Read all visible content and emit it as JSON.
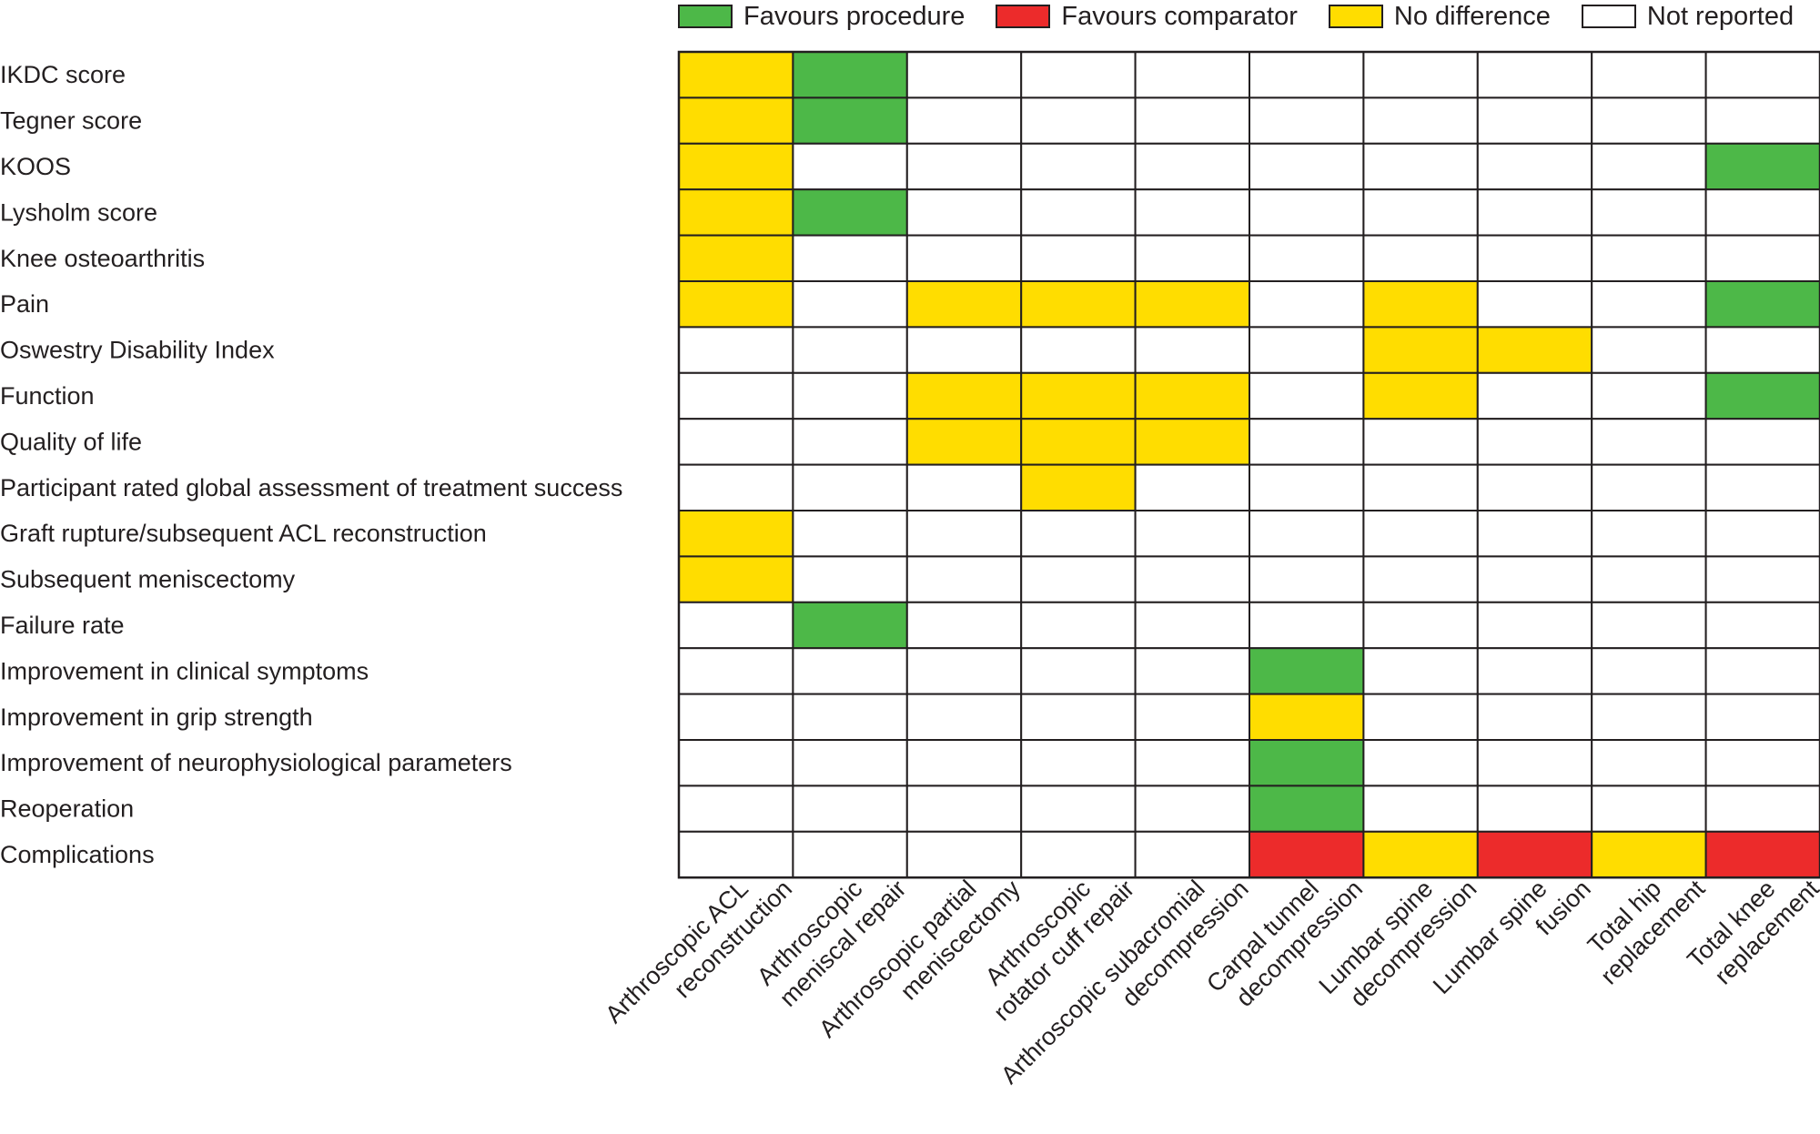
{
  "chart_data": {
    "type": "heatmap",
    "colors": {
      "favours_procedure": "#4db848",
      "favours_comparator": "#ec2b2b",
      "no_difference": "#ffdd00",
      "not_reported": "#ffffff",
      "border": "#231f20"
    },
    "legend": [
      {
        "key": "favours_procedure",
        "label": "Favours procedure"
      },
      {
        "key": "favours_comparator",
        "label": "Favours comparator"
      },
      {
        "key": "no_difference",
        "label": "No difference"
      },
      {
        "key": "not_reported",
        "label": "Not reported"
      }
    ],
    "legend_position": "top",
    "columns": [
      [
        "Arthroscopic ACL",
        "reconstruction"
      ],
      [
        "Arthroscopic",
        "meniscal repair"
      ],
      [
        "Arthroscopic partial",
        "meniscectomy"
      ],
      [
        "Arthroscopic",
        "rotator cuff repair"
      ],
      [
        "Arthroscopic subacromial",
        "decompression"
      ],
      [
        "Carpal tunnel",
        "decompression"
      ],
      [
        "Lumbar spine",
        "decompression"
      ],
      [
        "Lumbar spine",
        "fusion"
      ],
      [
        "Total hip",
        "replacement"
      ],
      [
        "Total knee",
        "replacement"
      ]
    ],
    "rows": [
      "IKDC score",
      "Tegner score",
      "KOOS",
      "Lysholm score",
      "Knee osteoarthritis",
      "Pain",
      "Oswestry Disability Index",
      "Function",
      "Quality of life",
      "Participant rated global assessment of treatment success",
      "Graft rupture/subsequent ACL reconstruction",
      "Subsequent meniscectomy",
      "Failure rate",
      "Improvement in clinical symptoms",
      "Improvement in grip strength",
      "Improvement of neurophysiological parameters",
      "Reoperation",
      "Complications"
    ],
    "cells": [
      [
        "Y",
        "G",
        "N",
        "N",
        "N",
        "N",
        "N",
        "N",
        "N",
        "N"
      ],
      [
        "Y",
        "G",
        "N",
        "N",
        "N",
        "N",
        "N",
        "N",
        "N",
        "N"
      ],
      [
        "Y",
        "N",
        "N",
        "N",
        "N",
        "N",
        "N",
        "N",
        "N",
        "G"
      ],
      [
        "Y",
        "G",
        "N",
        "N",
        "N",
        "N",
        "N",
        "N",
        "N",
        "N"
      ],
      [
        "Y",
        "N",
        "N",
        "N",
        "N",
        "N",
        "N",
        "N",
        "N",
        "N"
      ],
      [
        "Y",
        "N",
        "Y",
        "Y",
        "Y",
        "N",
        "Y",
        "N",
        "N",
        "G"
      ],
      [
        "N",
        "N",
        "N",
        "N",
        "N",
        "N",
        "Y",
        "Y",
        "N",
        "N"
      ],
      [
        "N",
        "N",
        "Y",
        "Y",
        "Y",
        "N",
        "Y",
        "N",
        "N",
        "G"
      ],
      [
        "N",
        "N",
        "Y",
        "Y",
        "Y",
        "N",
        "N",
        "N",
        "N",
        "N"
      ],
      [
        "N",
        "N",
        "N",
        "Y",
        "N",
        "N",
        "N",
        "N",
        "N",
        "N"
      ],
      [
        "Y",
        "N",
        "N",
        "N",
        "N",
        "N",
        "N",
        "N",
        "N",
        "N"
      ],
      [
        "Y",
        "N",
        "N",
        "N",
        "N",
        "N",
        "N",
        "N",
        "N",
        "N"
      ],
      [
        "N",
        "G",
        "N",
        "N",
        "N",
        "N",
        "N",
        "N",
        "N",
        "N"
      ],
      [
        "N",
        "N",
        "N",
        "N",
        "N",
        "G",
        "N",
        "N",
        "N",
        "N"
      ],
      [
        "N",
        "N",
        "N",
        "N",
        "N",
        "Y",
        "N",
        "N",
        "N",
        "N"
      ],
      [
        "N",
        "N",
        "N",
        "N",
        "N",
        "G",
        "N",
        "N",
        "N",
        "N"
      ],
      [
        "N",
        "N",
        "N",
        "N",
        "N",
        "G",
        "N",
        "N",
        "N",
        "N"
      ],
      [
        "N",
        "N",
        "N",
        "N",
        "N",
        "R",
        "Y",
        "R",
        "Y",
        "R"
      ]
    ],
    "cell_codes": {
      "G": "favours_procedure",
      "R": "favours_comparator",
      "Y": "no_difference",
      "N": "not_reported"
    }
  }
}
